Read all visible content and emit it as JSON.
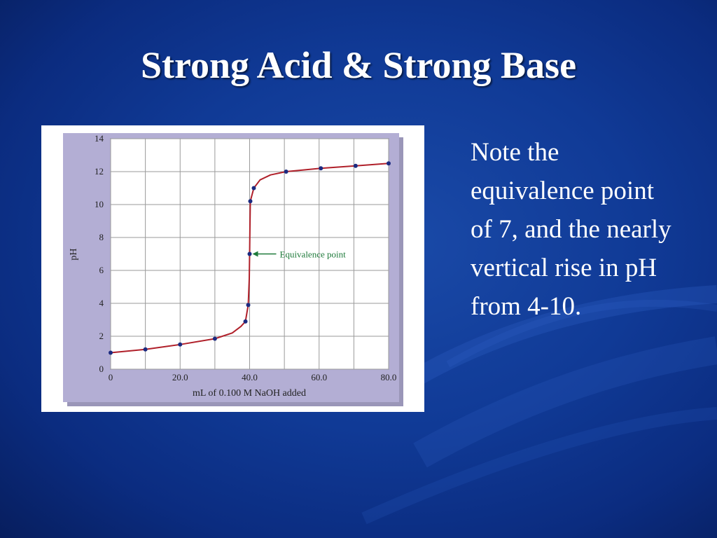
{
  "slide": {
    "title": "Strong Acid & Strong Base",
    "note": "Note the equivalence point of 7, and the nearly vertical rise in pH from 4-10."
  },
  "colors": {
    "background": "#0e3a94",
    "curve": "#b0202a",
    "points": "#1b2a80",
    "annotation": "#1e7a3a",
    "panel_frame": "#b3aed4"
  },
  "chart_data": {
    "type": "scatter",
    "title": "",
    "xlabel": "mL of 0.100 M NaOH added",
    "ylabel": "pH",
    "xlim": [
      0,
      80
    ],
    "ylim": [
      0,
      14
    ],
    "x_ticks": [
      0,
      20,
      40,
      60,
      80
    ],
    "x_tick_labels": [
      "0",
      "20.0",
      "40.0",
      "60.0",
      "80.0"
    ],
    "y_ticks": [
      0,
      2,
      4,
      6,
      8,
      10,
      12,
      14
    ],
    "y_tick_labels": [
      "0",
      "2",
      "4",
      "6",
      "8",
      "10",
      "12",
      "14"
    ],
    "grid": true,
    "series": [
      {
        "points": [
          {
            "x": 0,
            "y": 1.0
          },
          {
            "x": 10,
            "y": 1.2
          },
          {
            "x": 20,
            "y": 1.5
          },
          {
            "x": 30,
            "y": 1.85
          },
          {
            "x": 38.8,
            "y": 2.9
          },
          {
            "x": 39.6,
            "y": 3.9
          },
          {
            "x": 40,
            "y": 7.0
          },
          {
            "x": 40.2,
            "y": 10.2
          },
          {
            "x": 41.2,
            "y": 11.0
          },
          {
            "x": 50.5,
            "y": 12.0
          },
          {
            "x": 60.5,
            "y": 12.2
          },
          {
            "x": 70.5,
            "y": 12.35
          },
          {
            "x": 80,
            "y": 12.5
          }
        ]
      }
    ],
    "curve": [
      {
        "x": 0,
        "y": 1.0
      },
      {
        "x": 10,
        "y": 1.2
      },
      {
        "x": 20,
        "y": 1.5
      },
      {
        "x": 30,
        "y": 1.85
      },
      {
        "x": 35,
        "y": 2.2
      },
      {
        "x": 37.5,
        "y": 2.6
      },
      {
        "x": 38.8,
        "y": 2.9
      },
      {
        "x": 39.6,
        "y": 3.9
      },
      {
        "x": 39.9,
        "y": 5.5
      },
      {
        "x": 40,
        "y": 7.0
      },
      {
        "x": 40.1,
        "y": 8.8
      },
      {
        "x": 40.2,
        "y": 10.2
      },
      {
        "x": 41.2,
        "y": 11.0
      },
      {
        "x": 43,
        "y": 11.5
      },
      {
        "x": 46,
        "y": 11.8
      },
      {
        "x": 50.5,
        "y": 12.0
      },
      {
        "x": 60.5,
        "y": 12.2
      },
      {
        "x": 70.5,
        "y": 12.35
      },
      {
        "x": 80,
        "y": 12.5
      }
    ],
    "annotations": [
      {
        "text": "Equivalence point",
        "x": 40,
        "y": 7.0
      }
    ]
  }
}
